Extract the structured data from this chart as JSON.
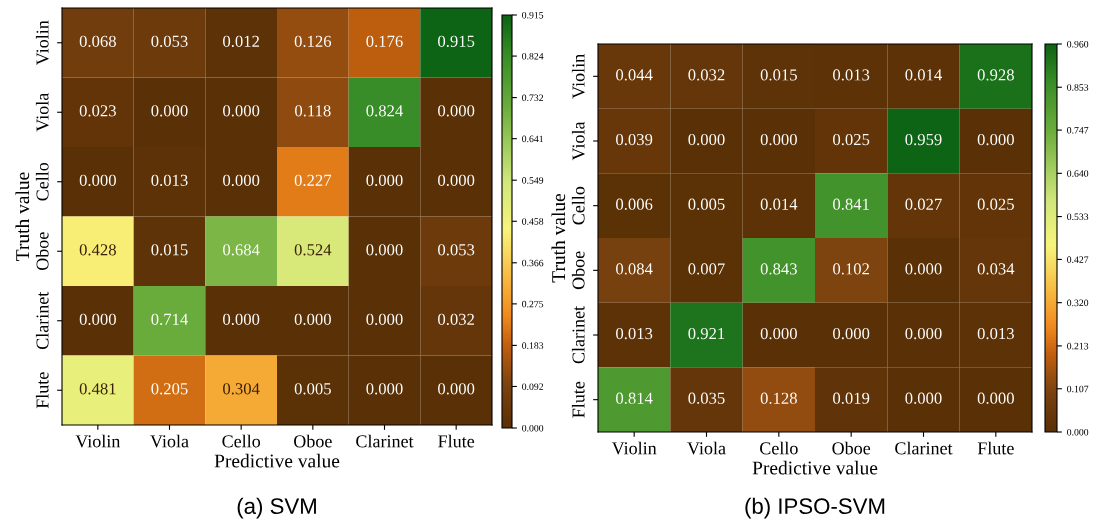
{
  "chart_data": [
    {
      "type": "heatmap",
      "title": "(a) SVM",
      "xlabel": "Predictive value",
      "ylabel": "Truth value",
      "categories": [
        "Violin",
        "Viola",
        "Cello",
        "Oboe",
        "Clarinet",
        "Flute"
      ],
      "y_categories": [
        "Violin",
        "Viola",
        "Cello",
        "Oboe",
        "Clarinet",
        "Flute"
      ],
      "cells": [
        [
          0.068,
          0.053,
          0.012,
          0.126,
          0.176,
          0.915
        ],
        [
          0.023,
          0.0,
          0.0,
          0.118,
          0.824,
          0.0
        ],
        [
          0.0,
          0.013,
          0.0,
          0.227,
          0.0,
          0.0
        ],
        [
          0.428,
          0.015,
          0.684,
          0.524,
          0.0,
          0.053
        ],
        [
          0.0,
          0.714,
          0.0,
          0.0,
          0.0,
          0.032
        ],
        [
          0.481,
          0.205,
          0.304,
          0.005,
          0.0,
          0.0
        ]
      ],
      "cell_labels": [
        [
          "0.068",
          "0.053",
          "0.012",
          "0.126",
          "0.176",
          "0.915"
        ],
        [
          "0.023",
          "0.000",
          "0.000",
          "0.118",
          "0.824",
          "0.000"
        ],
        [
          "0.000",
          "0.013",
          "0.000",
          "0.227",
          "0.000",
          "0.000"
        ],
        [
          "0.428",
          "0.015",
          "0.684",
          "0.524",
          "0.000",
          "0.053"
        ],
        [
          "0.000",
          "0.714",
          "0.000",
          "0.000",
          "0.000",
          "0.032"
        ],
        [
          "0.481",
          "0.205",
          "0.304",
          "0.005",
          "0.000",
          "0.000"
        ]
      ],
      "clim": [
        0.0,
        0.915
      ],
      "cticks": [
        {
          "value": 0.0,
          "label": "0.000"
        },
        {
          "value": 0.092,
          "label": "0.092"
        },
        {
          "value": 0.183,
          "label": "0.183"
        },
        {
          "value": 0.275,
          "label": "0.275"
        },
        {
          "value": 0.366,
          "label": "0.366"
        },
        {
          "value": 0.458,
          "label": "0.458"
        },
        {
          "value": 0.549,
          "label": "0.549"
        },
        {
          "value": 0.641,
          "label": "0.641"
        },
        {
          "value": 0.732,
          "label": "0.732"
        },
        {
          "value": 0.824,
          "label": "0.824"
        },
        {
          "value": 0.915,
          "label": "0.915"
        }
      ]
    },
    {
      "type": "heatmap",
      "title": "(b) IPSO-SVM",
      "xlabel": "Predictive value",
      "ylabel": "Truth value",
      "categories": [
        "Violin",
        "Viola",
        "Cello",
        "Oboe",
        "Clarinet",
        "Flute"
      ],
      "y_categories": [
        "Violin",
        "Viola",
        "Cello",
        "Oboe",
        "Clarinet",
        "Flute"
      ],
      "cells": [
        [
          0.044,
          0.032,
          0.015,
          0.013,
          0.014,
          0.928
        ],
        [
          0.039,
          0.0,
          0.0,
          0.025,
          0.959,
          0.0
        ],
        [
          0.006,
          0.005,
          0.014,
          0.841,
          0.027,
          0.025
        ],
        [
          0.084,
          0.007,
          0.843,
          0.102,
          0.0,
          0.034
        ],
        [
          0.013,
          0.921,
          0.0,
          0.0,
          0.0,
          0.013
        ],
        [
          0.814,
          0.035,
          0.128,
          0.019,
          0.0,
          0.0
        ]
      ],
      "cell_labels": [
        [
          "0.044",
          "0.032",
          "0.015",
          "0.013",
          "0.014",
          "0.928"
        ],
        [
          "0.039",
          "0.000",
          "0.000",
          "0.025",
          "0.959",
          "0.000"
        ],
        [
          "0.006",
          "0.005",
          "0.014",
          "0.841",
          "0.027",
          "0.025"
        ],
        [
          "0.084",
          "0.007",
          "0.843",
          "0.102",
          "0.000",
          "0.034"
        ],
        [
          "0.013",
          "0.921",
          "0.000",
          "0.000",
          "0.000",
          "0.013"
        ],
        [
          "0.814",
          "0.035",
          "0.128",
          "0.019",
          "0.000",
          "0.000"
        ]
      ],
      "clim": [
        0.0,
        0.96
      ],
      "cticks": [
        {
          "value": 0.0,
          "label": "0.000"
        },
        {
          "value": 0.107,
          "label": "0.107"
        },
        {
          "value": 0.213,
          "label": "0.213"
        },
        {
          "value": 0.32,
          "label": "0.320"
        },
        {
          "value": 0.427,
          "label": "0.427"
        },
        {
          "value": 0.533,
          "label": "0.533"
        },
        {
          "value": 0.64,
          "label": "0.640"
        },
        {
          "value": 0.747,
          "label": "0.747"
        },
        {
          "value": 0.853,
          "label": "0.853"
        },
        {
          "value": 0.96,
          "label": "0.960"
        }
      ]
    }
  ]
}
